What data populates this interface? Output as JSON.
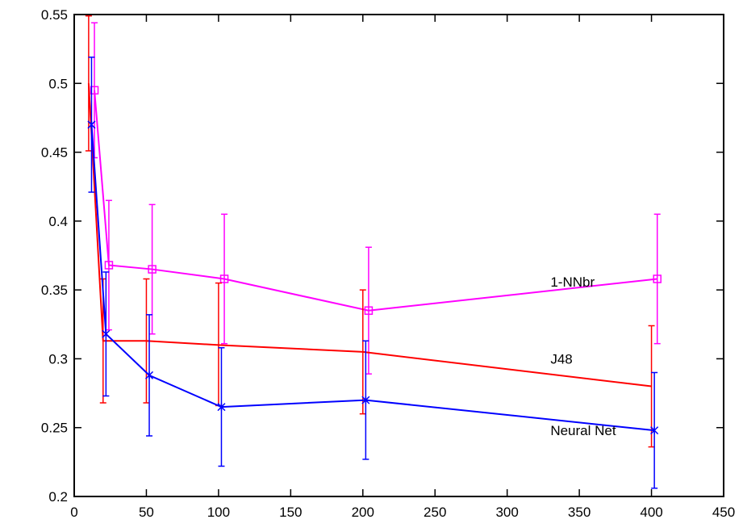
{
  "chart_data": {
    "type": "line",
    "title": "",
    "xlabel": "",
    "ylabel": "",
    "xlim": [
      0,
      450
    ],
    "ylim": [
      0.2,
      0.55
    ],
    "x_ticks": [
      0,
      50,
      100,
      150,
      200,
      250,
      300,
      350,
      400,
      450
    ],
    "y_ticks": [
      0.2,
      0.25,
      0.3,
      0.35,
      0.4,
      0.45,
      0.5,
      0.55
    ],
    "x_tick_labels": [
      "0",
      "50",
      "100",
      "150",
      "200",
      "250",
      "300",
      "350",
      "400",
      "450"
    ],
    "y_tick_labels": [
      "0.2",
      "0.25",
      "0.3",
      "0.35",
      "0.4",
      "0.45",
      "0.5",
      "0.55"
    ],
    "grid": false,
    "legend": "inline labels",
    "series": [
      {
        "name": "1-NNbr",
        "color": "#ff00ff",
        "marker": "square",
        "x": [
          14,
          24,
          54,
          104,
          204,
          404
        ],
        "y": [
          0.495,
          0.368,
          0.365,
          0.358,
          0.335,
          0.358
        ],
        "err_low": [
          0.446,
          0.321,
          0.318,
          0.311,
          0.289,
          0.311
        ],
        "err_high": [
          0.544,
          0.415,
          0.412,
          0.405,
          0.381,
          0.405
        ]
      },
      {
        "name": "J48",
        "color": "#ff0000",
        "marker": "none",
        "x": [
          10,
          20,
          50,
          100,
          200,
          400
        ],
        "y": [
          0.5,
          0.313,
          0.313,
          0.31,
          0.305,
          0.28
        ],
        "err_low": [
          0.451,
          0.268,
          0.268,
          0.266,
          0.26,
          0.236
        ],
        "err_high": [
          0.549,
          0.358,
          0.358,
          0.355,
          0.35,
          0.324
        ]
      },
      {
        "name": "Neural Net",
        "color": "#0000ff",
        "marker": "star",
        "x": [
          12,
          22,
          52,
          102,
          202,
          402
        ],
        "y": [
          0.47,
          0.318,
          0.288,
          0.265,
          0.27,
          0.248
        ],
        "err_low": [
          0.421,
          0.273,
          0.244,
          0.222,
          0.227,
          0.206
        ],
        "err_high": [
          0.519,
          0.363,
          0.332,
          0.308,
          0.313,
          0.29
        ]
      }
    ],
    "annotations": [
      {
        "text": "1-NNbr",
        "x": 330,
        "y": 0.356
      },
      {
        "text": "J48",
        "x": 330,
        "y": 0.3
      },
      {
        "text": "Neural Net",
        "x": 330,
        "y": 0.248
      }
    ]
  }
}
